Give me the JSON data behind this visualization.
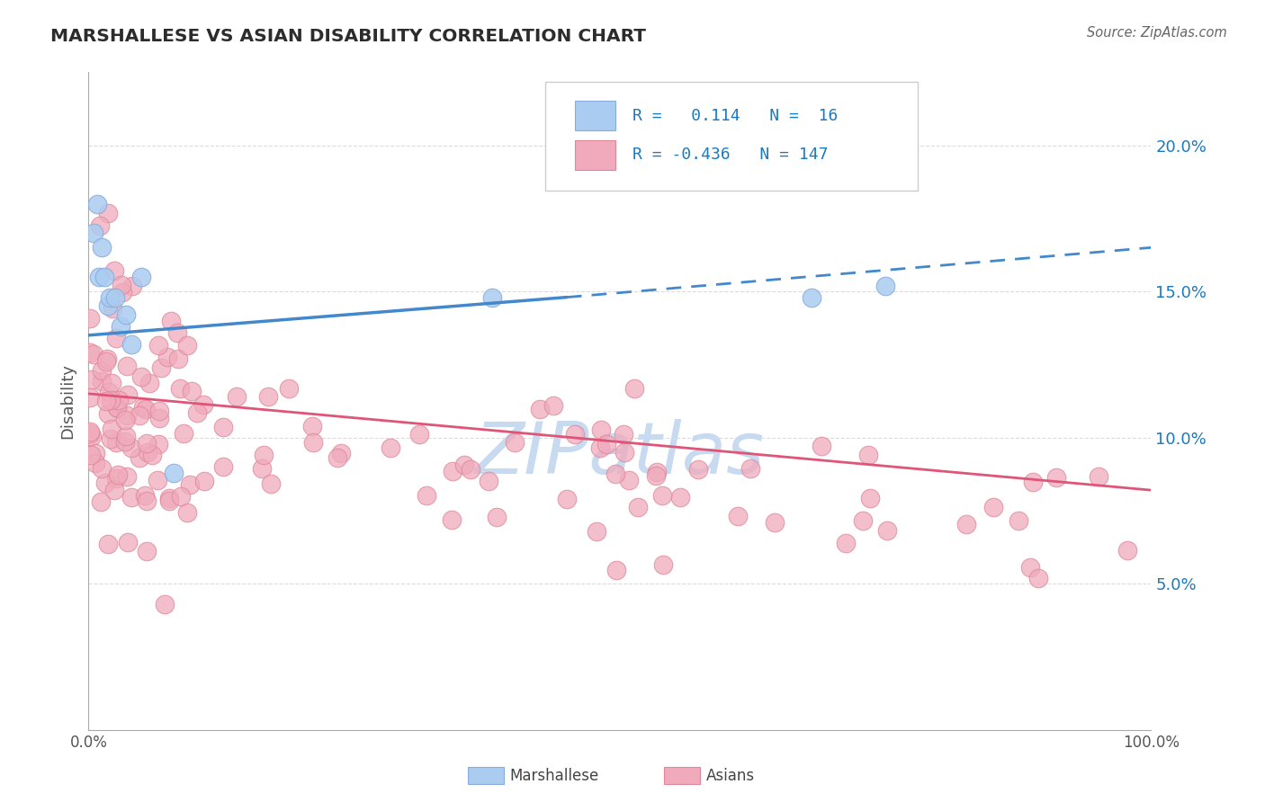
{
  "title": "MARSHALLESE VS ASIAN DISABILITY CORRELATION CHART",
  "source_text": "Source: ZipAtlas.com",
  "ylabel": "Disability",
  "xlim": [
    0.0,
    1.0
  ],
  "ylim": [
    0.0,
    0.225
  ],
  "background_color": "#ffffff",
  "grid_color": "#cccccc",
  "marshallese_color": "#aaccf0",
  "marshallese_edge_color": "#88aadd",
  "asians_color": "#f0aabb",
  "asians_edge_color": "#dd8899",
  "marshallese_R": 0.114,
  "marshallese_N": 16,
  "asians_R": -0.436,
  "asians_N": 147,
  "legend_color": "#1a7abf",
  "title_color": "#2c2c2c",
  "marshallese_line_color": "#4488cc",
  "asians_line_color": "#e05577",
  "watermark_color": "#c8daf0",
  "marsh_line_start_x": 0.0,
  "marsh_line_switch_x": 0.45,
  "marsh_line_end_x": 1.0,
  "marsh_line_y0": 0.135,
  "marsh_line_y_switch": 0.148,
  "marsh_line_y1": 0.165,
  "asian_line_y0": 0.115,
  "asian_line_y1": 0.082,
  "y_ticks": [
    0.05,
    0.1,
    0.15,
    0.2
  ],
  "y_tick_labels": [
    "5.0%",
    "10.0%",
    "15.0%",
    "20.0%"
  ]
}
